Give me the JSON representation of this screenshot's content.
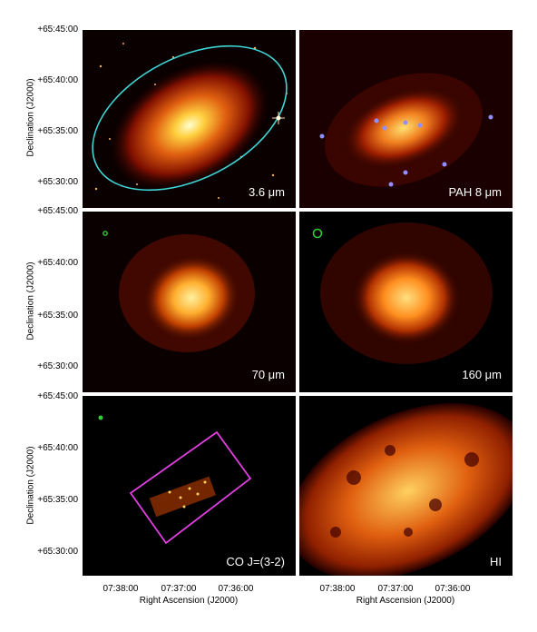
{
  "figure": {
    "y_ticks": [
      "+65:45:00",
      "+65:40:00",
      "+65:35:00",
      "+65:30:00"
    ],
    "x_ticks": [
      "07:38:00",
      "07:37:00",
      "07:36:00"
    ],
    "ylabel": "Declination (J2000)",
    "xlabel": "Right Ascension (J2000)"
  },
  "panels": [
    {
      "id": "p36",
      "label": "3.6 μm"
    },
    {
      "id": "pah",
      "label": "PAH 8 μm"
    },
    {
      "id": "p70",
      "label": "70 μm"
    },
    {
      "id": "p160",
      "label": "160 μm"
    },
    {
      "id": "pco",
      "label": "CO J=(3-2)"
    },
    {
      "id": "phi",
      "label": "HI"
    }
  ],
  "colors": {
    "ellipse": "#3fd6d6",
    "co_box": "#e040e0",
    "beam": "#33cc33",
    "markers": "#8f8fff"
  }
}
